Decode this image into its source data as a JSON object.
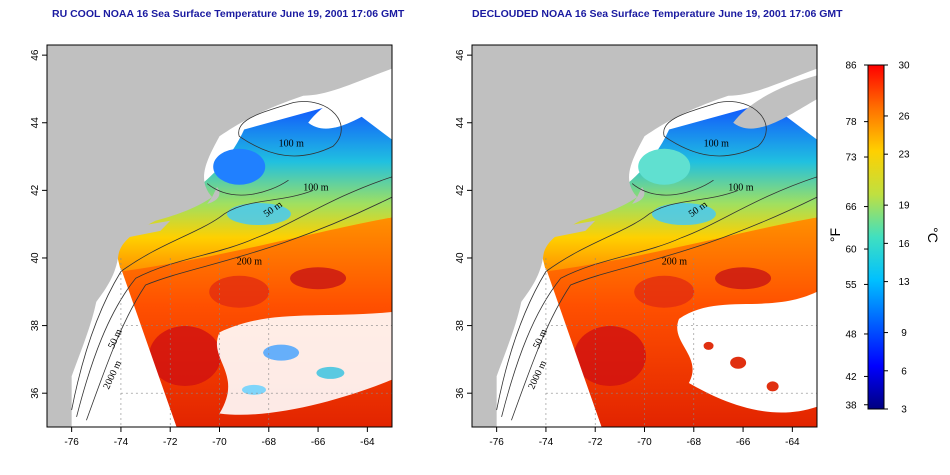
{
  "titles": {
    "left": "RU COOL NOAA 16 Sea Surface Temperature June 19, 2001 17:06 GMT",
    "right": "DECLOUDED NOAA 16 Sea Surface Temperature June 19, 2001 17:06 GMT"
  },
  "axes": {
    "x_ticks": [
      "-76",
      "-74",
      "-72",
      "-70",
      "-68",
      "-66",
      "-64"
    ],
    "y_ticks": [
      "46",
      "44",
      "42",
      "40",
      "38",
      "36"
    ]
  },
  "contour_labels": [
    "100 m",
    "100 m",
    "50 m",
    "200 m",
    "50 m",
    "2000 m"
  ],
  "colorbar": {
    "fahrenheit_unit": "°F",
    "celsius_unit": "°C",
    "fahrenheit_ticks": [
      "86",
      "78",
      "73",
      "66",
      "60",
      "55",
      "48",
      "42",
      "38"
    ],
    "celsius_ticks": [
      "30",
      "26",
      "23",
      "19",
      "16",
      "13",
      "9",
      "6",
      "3"
    ],
    "colors": [
      "#ff0000",
      "#ff7000",
      "#ffd000",
      "#c0e040",
      "#40e0c0",
      "#00c0ff",
      "#0060ff",
      "#0000ff",
      "#000080"
    ]
  },
  "colors": {
    "land": "#c0c0c0",
    "cloud": "#ffffff",
    "title": "#1a1aa0"
  }
}
